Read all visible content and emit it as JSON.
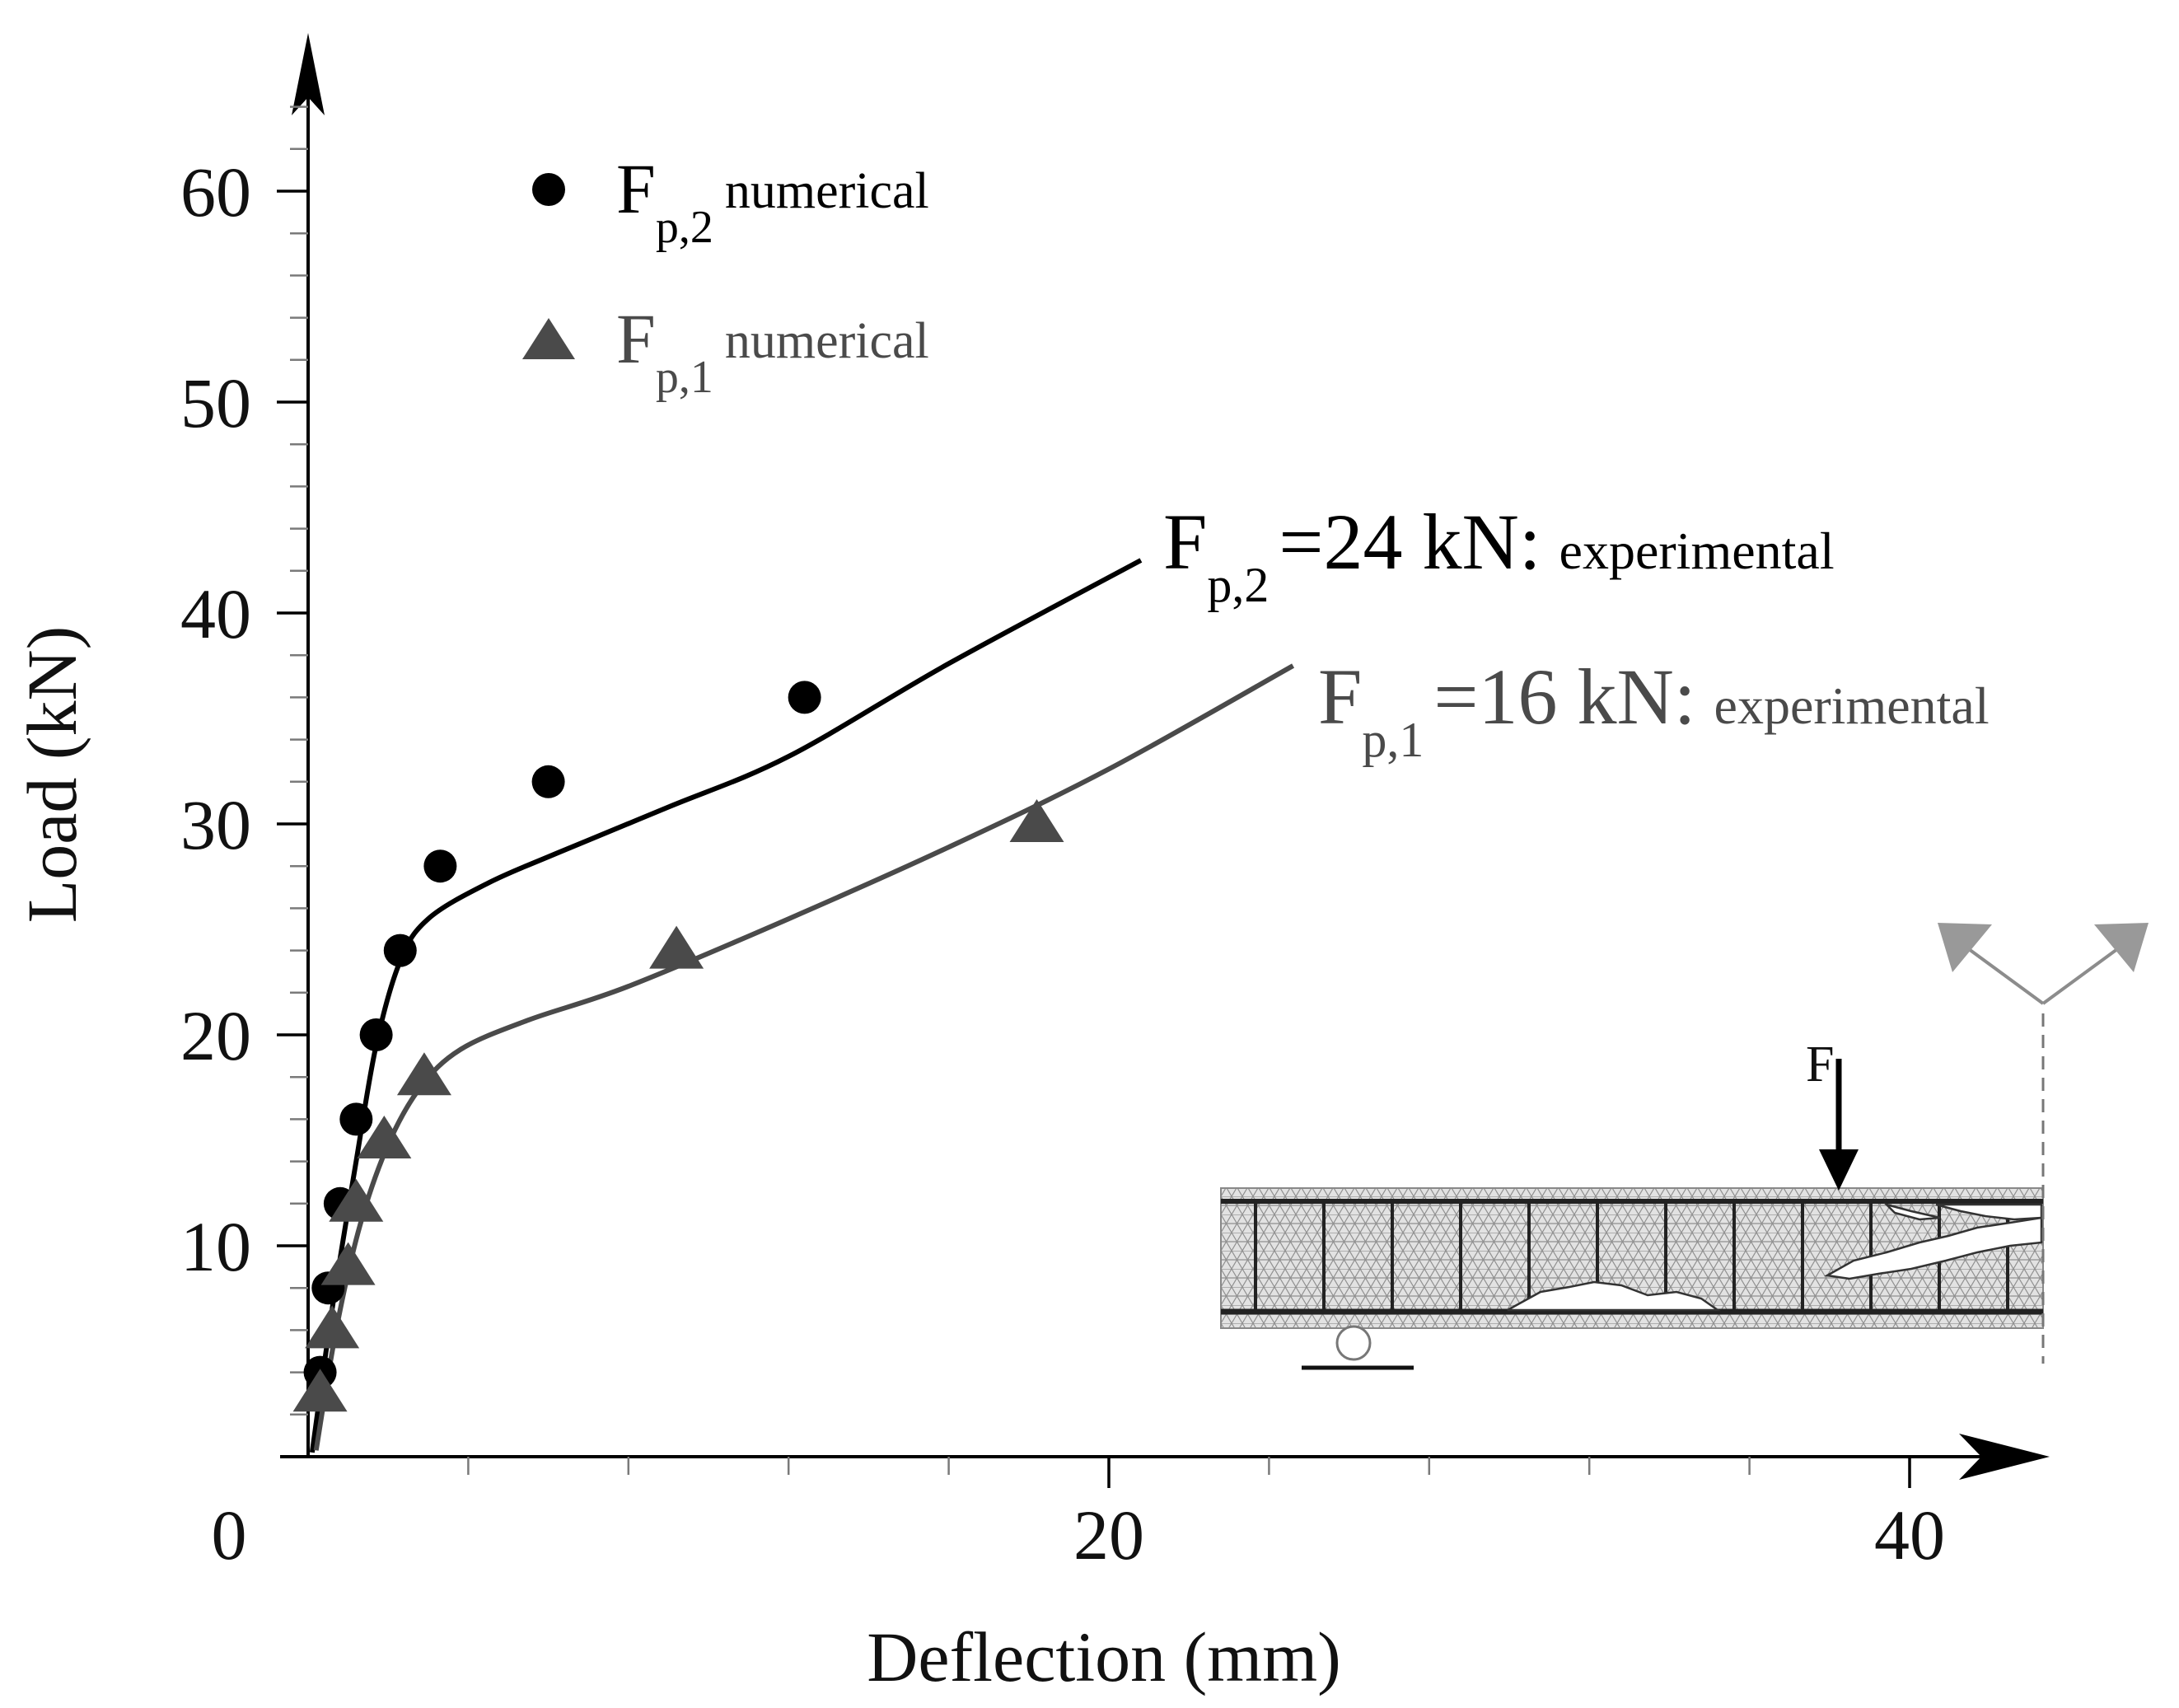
{
  "chart_data": {
    "type": "scatter",
    "xlabel": "Deflection (mm)",
    "ylabel": "Load (kN)",
    "xlim": [
      0,
      43
    ],
    "ylim": [
      0,
      65
    ],
    "x_ticks": [
      0,
      20,
      40
    ],
    "x_minor_ticks": [
      4,
      8,
      12,
      16,
      24,
      28,
      32,
      36
    ],
    "y_ticks": [
      10,
      20,
      30,
      40,
      50,
      60
    ],
    "y_minor_step": 2,
    "grid": false,
    "legend_position": "top-left",
    "colors": {
      "series_2": "#000000",
      "series_1": "#4a4a4a",
      "axis": "#000000",
      "minor_tick": "#7a7a7a"
    },
    "series": [
      {
        "name": "F_p,2 numerical",
        "kind": "markers",
        "marker": "circle",
        "color": "#000000",
        "x": [
          0.3,
          0.5,
          0.8,
          1.2,
          1.7,
          2.3,
          3.3,
          6.0,
          12.4
        ],
        "y": [
          4,
          8,
          12,
          16,
          20,
          24,
          28,
          32,
          36
        ]
      },
      {
        "name": "F_p,1 numerical",
        "kind": "markers",
        "marker": "triangle",
        "color": "#4a4a4a",
        "x": [
          0.3,
          0.6,
          1.0,
          1.2,
          1.9,
          2.9,
          9.2,
          18.2
        ],
        "y": [
          3,
          6,
          9,
          12,
          15,
          18,
          24,
          30
        ]
      },
      {
        "name": "F_p,2 =24 kN: experimental",
        "kind": "line",
        "color": "#000000",
        "x": [
          0.1,
          0.6,
          1.2,
          1.7,
          2.3,
          3.0,
          4.5,
          6.2,
          9.0,
          12.0,
          16.0,
          20.8
        ],
        "y": [
          0.2,
          7,
          14,
          19.5,
          23.5,
          25.5,
          27.2,
          28.6,
          30.8,
          33.2,
          37.6,
          42.5
        ]
      },
      {
        "name": "F_p,1 =16 kN: experimental",
        "kind": "line",
        "color": "#4a4a4a",
        "x": [
          0.2,
          0.7,
          1.3,
          2.0,
          2.8,
          3.8,
          5.5,
          8.0,
          12.0,
          16.0,
          20.0,
          24.6
        ],
        "y": [
          0.3,
          6,
          11,
          14.8,
          17.5,
          19.3,
          20.7,
          22.3,
          25.5,
          28.9,
          32.6,
          37.5
        ]
      }
    ],
    "legend": [
      {
        "marker": "circle",
        "symbol": "F",
        "sub": "p,2",
        "text": "numerical",
        "color": "#000000"
      },
      {
        "marker": "triangle",
        "symbol": "F",
        "sub": "p,1",
        "text": "numerical",
        "color": "#4a4a4a"
      }
    ],
    "annotations": [
      {
        "series": "F_p,2 =24 kN: experimental",
        "symbol": "F",
        "sub": "p,2",
        "main": "=24 kN:",
        "small": "experimental",
        "color": "#000000"
      },
      {
        "series": "F_p,1 =16 kN: experimental",
        "symbol": "F",
        "sub": "p,1",
        "main": "=16 kN:",
        "small": "experimental",
        "color": "#4a4a4a"
      }
    ],
    "inset": {
      "description_label": "F",
      "load_arrow_label": "F",
      "colors": {
        "mesh_fill": "#d8d8d8",
        "mesh_line": "#9a9a9a",
        "bar": "#222222",
        "crack": "#ffffff",
        "symmetry_flag": "#8c8c8c"
      }
    }
  }
}
